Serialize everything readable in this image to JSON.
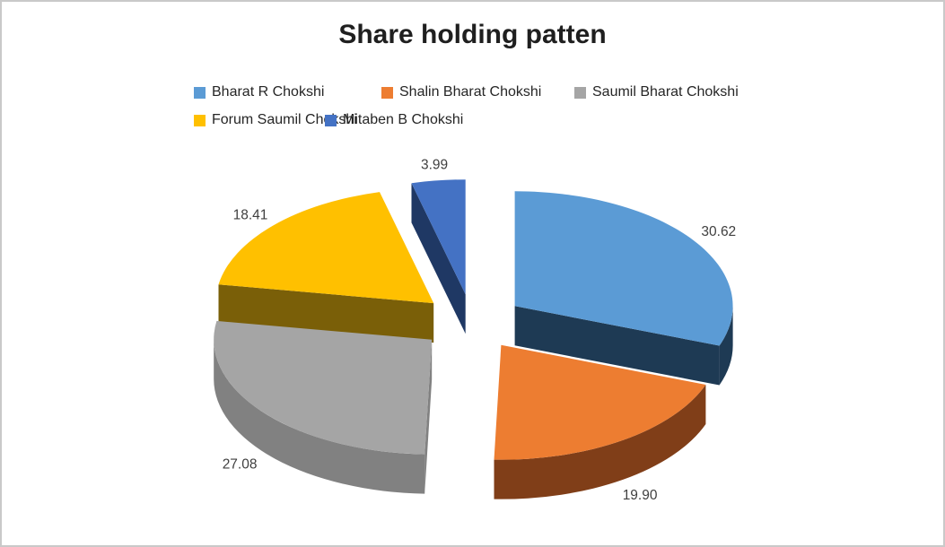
{
  "chart_data": {
    "type": "pie",
    "style": "3d-exploded",
    "title": "Share holding patten",
    "labels": [
      "Bharat R Chokshi",
      "Shalin Bharat Chokshi",
      "Saumil Bharat Chokshi",
      "Forum Saumil Chokshi",
      "Mitaben B Chokshi"
    ],
    "values": [
      30.62,
      19.9,
      27.08,
      18.41,
      3.99
    ],
    "value_labels": [
      "30.62",
      "19.90",
      "27.08",
      "18.41",
      "3.99"
    ],
    "colors": [
      "#5B9BD5",
      "#ED7D31",
      "#A5A5A5",
      "#FFC000",
      "#4472C4"
    ],
    "side_colors": [
      "#1E3A54",
      "#803E18",
      "#818181",
      "#7A5F08",
      "#1F3864"
    ],
    "start_angle_deg": 0,
    "direction": "clockwise",
    "legend_position": "top",
    "title_color": "#1F1F1F",
    "legend_text_color": "#262626",
    "data_label_color": "#3F3F3F",
    "background": "#FFFFFF",
    "border_color": "#C9C9C9"
  }
}
